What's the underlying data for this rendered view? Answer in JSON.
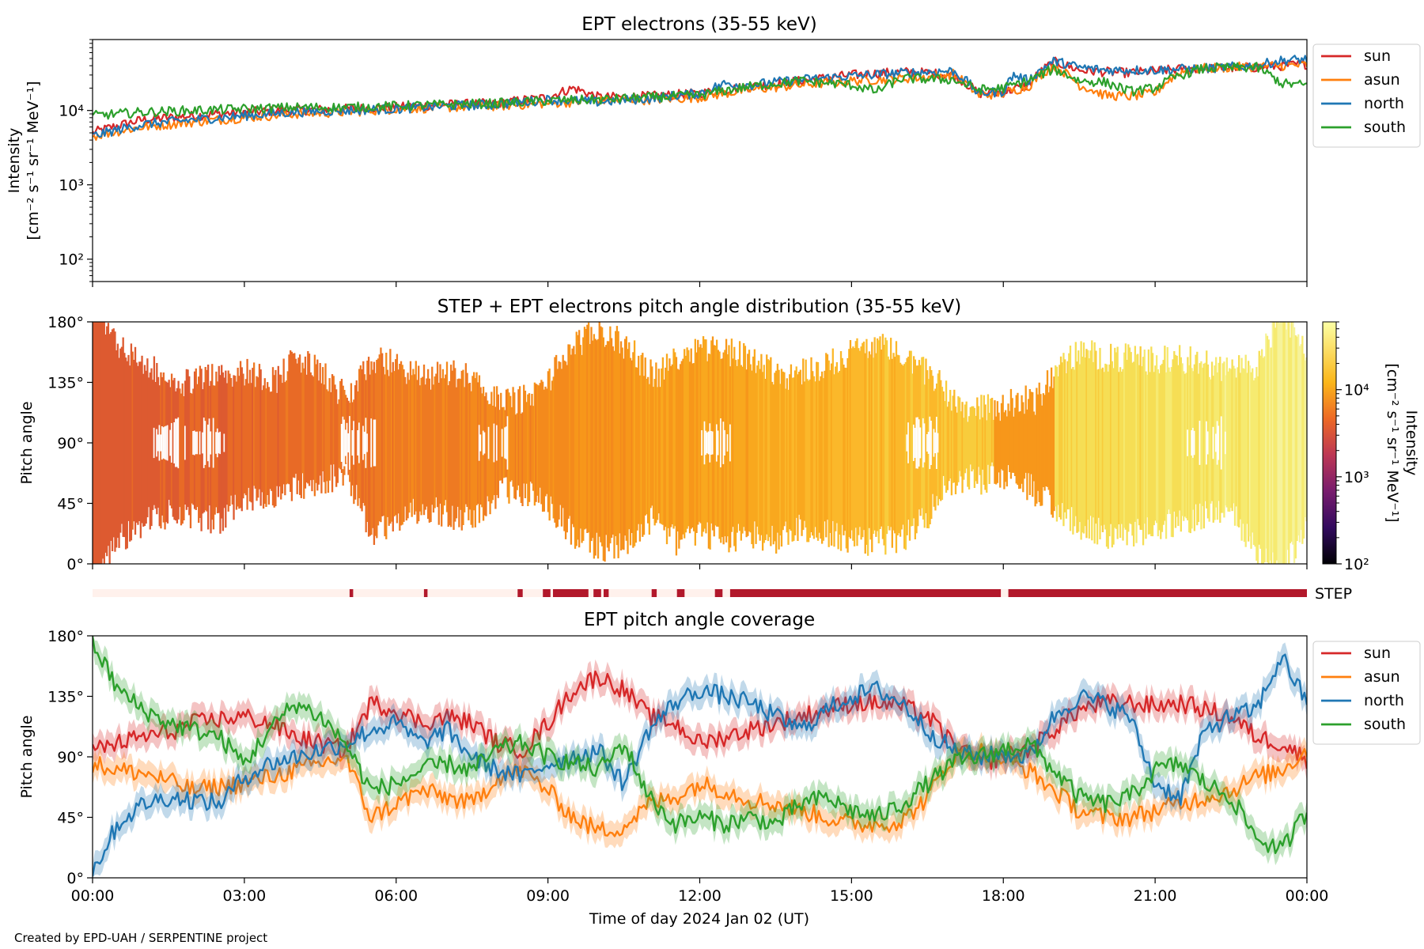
{
  "figure": {
    "credit": "Created by EPD-UAH / SERPENTINE project",
    "colors": {
      "sun": "#d62728",
      "asun": "#ff7f0e",
      "north": "#1f77b4",
      "south": "#2ca02c",
      "step_on": "#b2182b",
      "step_off": "#fff1ec"
    }
  },
  "chart_data": [
    {
      "type": "line",
      "title": "EPT electrons (35-55 keV)",
      "ylabel": "Intensity",
      "yunit": "[cm⁻² s⁻¹ sr⁻¹ MeV⁻¹]",
      "yscale": "log",
      "ylim": [
        50,
        90000
      ],
      "xlim_hours": [
        0,
        24
      ],
      "yticks": [
        {
          "value": 100,
          "label": "10²"
        },
        {
          "value": 1000,
          "label": "10³"
        },
        {
          "value": 10000,
          "label": "10⁴"
        }
      ],
      "legend": "outside-right",
      "series": [
        {
          "name": "sun",
          "color": "#d62728",
          "x": [
            0,
            1,
            2,
            3,
            4,
            5,
            6,
            7,
            8,
            9,
            9.5,
            10,
            11,
            12,
            12.5,
            13,
            14,
            15,
            16,
            16.5,
            17,
            17.5,
            18,
            18.5,
            19,
            19.5,
            20,
            20.5,
            21,
            21.5,
            22,
            23,
            23.5,
            24
          ],
          "values": [
            5000,
            7500,
            8500,
            9500,
            10000,
            10500,
            11000,
            12000,
            12500,
            15000,
            20000,
            15000,
            15500,
            17000,
            19000,
            21000,
            25000,
            30000,
            33000,
            32000,
            30000,
            17000,
            17500,
            22000,
            45000,
            35000,
            33000,
            32000,
            34000,
            36000,
            37000,
            38000,
            40000,
            42000
          ]
        },
        {
          "name": "asun",
          "color": "#ff7f0e",
          "x": [
            0,
            1,
            2,
            3,
            4,
            5,
            6,
            7,
            8,
            9,
            10,
            11,
            12,
            13,
            14,
            15,
            16,
            16.5,
            17,
            17.5,
            18,
            18.5,
            19,
            19.5,
            20,
            20.5,
            21,
            21.5,
            22,
            23,
            23.5,
            24
          ],
          "values": [
            4500,
            6000,
            7000,
            8000,
            9000,
            9500,
            10500,
            11000,
            11500,
            12500,
            13500,
            14000,
            15000,
            19000,
            22000,
            25000,
            27000,
            28000,
            31000,
            16000,
            17000,
            21000,
            40000,
            22000,
            16000,
            15500,
            17000,
            33000,
            37000,
            39000,
            40000,
            41000
          ]
        },
        {
          "name": "north",
          "color": "#1f77b4",
          "x": [
            0,
            1,
            2,
            3,
            4,
            5,
            6,
            7,
            8,
            9,
            10,
            11,
            12,
            12.5,
            13,
            14,
            15,
            16,
            17,
            17.5,
            18,
            18.2,
            18.5,
            19,
            19.5,
            20,
            21,
            22,
            23,
            23.5,
            24
          ],
          "values": [
            4500,
            6500,
            7500,
            8500,
            9500,
            10000,
            10500,
            11500,
            12000,
            14000,
            13000,
            14500,
            17000,
            23000,
            22000,
            26000,
            29000,
            32000,
            34000,
            17000,
            18000,
            30000,
            25000,
            46000,
            38000,
            35000,
            35000,
            37000,
            40000,
            47000,
            49000
          ]
        },
        {
          "name": "south",
          "color": "#2ca02c",
          "x": [
            0,
            1,
            2,
            3,
            4,
            5,
            6,
            7,
            8,
            9,
            10,
            11,
            12,
            13,
            14,
            15,
            15.5,
            16,
            17,
            17.5,
            18,
            18.5,
            19,
            19.5,
            20,
            20.5,
            21,
            21.5,
            22,
            23,
            23.5,
            24
          ],
          "values": [
            8500,
            9500,
            10000,
            10500,
            11000,
            11000,
            11500,
            12000,
            12500,
            13500,
            14000,
            15000,
            16000,
            21000,
            25000,
            22000,
            18000,
            27000,
            26000,
            19000,
            20000,
            25000,
            36000,
            25000,
            24000,
            18000,
            20000,
            30000,
            37000,
            38000,
            23000,
            22000
          ]
        }
      ]
    },
    {
      "type": "heatmap",
      "title": "STEP + EPT electrons pitch angle distribution (35-55 keV)",
      "ylabel": "Pitch angle",
      "ylim": [
        0,
        180
      ],
      "xlim_hours": [
        0,
        24
      ],
      "yticks": [
        {
          "value": 0,
          "label": "0°"
        },
        {
          "value": 45,
          "label": "45°"
        },
        {
          "value": 90,
          "label": "90°"
        },
        {
          "value": 135,
          "label": "135°"
        },
        {
          "value": 180,
          "label": "180°"
        }
      ],
      "colorbar": {
        "label": "Intensity",
        "unit": "[cm⁻² s⁻¹ sr⁻¹ MeV⁻¹]",
        "scale": "log",
        "range": [
          100,
          60000
        ],
        "ticks": [
          {
            "value": 100,
            "label": "10²"
          },
          {
            "value": 1000,
            "label": "10³"
          },
          {
            "value": 10000,
            "label": "10⁴"
          }
        ]
      }
    },
    {
      "type": "bar",
      "label": "STEP",
      "xlim_hours": [
        0,
        24
      ],
      "segments": [
        [
          5.08,
          5.15
        ],
        [
          6.55,
          6.62
        ],
        [
          8.4,
          8.5
        ],
        [
          8.9,
          9.05
        ],
        [
          9.1,
          9.8
        ],
        [
          9.9,
          10.05
        ],
        [
          10.1,
          10.2
        ],
        [
          11.05,
          11.15
        ],
        [
          11.55,
          11.7
        ],
        [
          12.3,
          12.45
        ],
        [
          12.6,
          17.95
        ],
        [
          18.1,
          24.0
        ]
      ]
    },
    {
      "type": "line",
      "title": "EPT pitch angle coverage",
      "ylabel": "Pitch angle",
      "xlabel": "Time of day 2024 Jan 02 (UT)",
      "ylim": [
        0,
        180
      ],
      "xlim_hours": [
        0,
        24
      ],
      "band": "shaded ±8° around each series",
      "yticks": [
        {
          "value": 0,
          "label": "0°"
        },
        {
          "value": 45,
          "label": "45°"
        },
        {
          "value": 90,
          "label": "90°"
        },
        {
          "value": 135,
          "label": "135°"
        },
        {
          "value": 180,
          "label": "180°"
        }
      ],
      "xticks": [
        {
          "value": 0,
          "label": "00:00"
        },
        {
          "value": 3,
          "label": "03:00"
        },
        {
          "value": 6,
          "label": "06:00"
        },
        {
          "value": 9,
          "label": "09:00"
        },
        {
          "value": 12,
          "label": "12:00"
        },
        {
          "value": 15,
          "label": "15:00"
        },
        {
          "value": 18,
          "label": "18:00"
        },
        {
          "value": 21,
          "label": "21:00"
        },
        {
          "value": 24,
          "label": "00:00"
        }
      ],
      "legend": "outside-right",
      "series": [
        {
          "name": "sun",
          "color": "#d62728",
          "x": [
            0,
            0.5,
            1,
            1.5,
            2,
            2.5,
            3,
            3.5,
            4,
            4.5,
            5,
            5.5,
            6,
            6.5,
            7,
            7.5,
            8,
            8.5,
            9,
            9.5,
            10,
            10.5,
            11,
            11.5,
            12,
            12.5,
            13,
            13.5,
            14,
            14.5,
            15,
            15.5,
            16,
            16.5,
            17,
            17.5,
            18,
            18.5,
            19,
            19.5,
            20,
            20.5,
            21,
            21.5,
            22,
            22.5,
            23,
            23.5,
            24
          ],
          "values": [
            95,
            100,
            105,
            108,
            115,
            118,
            120,
            115,
            105,
            100,
            95,
            130,
            125,
            115,
            120,
            115,
            100,
            95,
            115,
            140,
            150,
            140,
            120,
            115,
            100,
            105,
            110,
            115,
            120,
            125,
            130,
            130,
            128,
            120,
            100,
            85,
            90,
            95,
            110,
            125,
            130,
            130,
            128,
            130,
            125,
            120,
            105,
            100,
            88
          ]
        },
        {
          "name": "asun",
          "color": "#ff7f0e",
          "x": [
            0,
            0.5,
            1,
            1.5,
            2,
            2.5,
            3,
            3.5,
            4,
            4.5,
            5,
            5.5,
            6,
            6.5,
            7,
            7.5,
            8,
            8.5,
            9,
            9.5,
            10,
            10.5,
            11,
            11.5,
            12,
            12.5,
            13,
            13.5,
            14,
            14.5,
            15,
            15.5,
            16,
            16.5,
            17,
            17.5,
            18,
            18.5,
            19,
            19.5,
            20,
            20.5,
            21,
            21.5,
            22,
            22.5,
            23,
            23.5,
            24
          ],
          "values": [
            85,
            80,
            78,
            72,
            65,
            68,
            70,
            75,
            80,
            85,
            90,
            45,
            55,
            65,
            60,
            55,
            75,
            80,
            65,
            45,
            35,
            38,
            55,
            60,
            70,
            65,
            58,
            55,
            50,
            45,
            40,
            40,
            42,
            60,
            90,
            95,
            88,
            80,
            65,
            50,
            45,
            45,
            50,
            55,
            60,
            65,
            75,
            80,
            95
          ]
        },
        {
          "name": "north",
          "color": "#1f77b4",
          "x": [
            0,
            0.5,
            1,
            1.5,
            2,
            2.5,
            3,
            3.5,
            4,
            4.5,
            5,
            5.5,
            6,
            6.5,
            7,
            7.5,
            8,
            8.5,
            9,
            9.5,
            10,
            10.5,
            11,
            11.5,
            12,
            12.5,
            13,
            13.5,
            14,
            14.5,
            15,
            15.5,
            16,
            16.5,
            17,
            17.5,
            18,
            18.5,
            19,
            19.5,
            20,
            20.5,
            21,
            21.5,
            22,
            22.5,
            23,
            23.5,
            24
          ],
          "values": [
            5,
            40,
            55,
            60,
            58,
            55,
            75,
            85,
            90,
            95,
            100,
            110,
            115,
            100,
            110,
            90,
            80,
            75,
            85,
            90,
            95,
            70,
            110,
            130,
            140,
            135,
            130,
            120,
            110,
            125,
            135,
            140,
            130,
            110,
            95,
            90,
            92,
            90,
            120,
            135,
            130,
            120,
            70,
            60,
            110,
            120,
            125,
            165,
            130
          ]
        },
        {
          "name": "south",
          "color": "#2ca02c",
          "x": [
            0,
            0.5,
            1,
            1.5,
            2,
            2.5,
            3,
            3.5,
            4,
            4.5,
            5,
            5.5,
            6,
            6.5,
            7,
            7.5,
            8,
            8.5,
            9,
            9.5,
            10,
            10.5,
            11,
            11.5,
            12,
            12.5,
            13,
            13.5,
            14,
            14.5,
            15,
            15.5,
            16,
            16.5,
            17,
            17.5,
            18,
            18.5,
            19,
            19.5,
            20,
            20.5,
            21,
            21.5,
            22,
            22.5,
            23,
            23.5,
            24
          ],
          "values": [
            175,
            140,
            125,
            115,
            110,
            105,
            85,
            110,
            130,
            120,
            100,
            65,
            70,
            80,
            85,
            80,
            95,
            100,
            90,
            85,
            80,
            100,
            60,
            40,
            45,
            40,
            45,
            40,
            55,
            60,
            50,
            45,
            55,
            70,
            85,
            90,
            95,
            100,
            80,
            60,
            55,
            60,
            80,
            85,
            70,
            60,
            30,
            20,
            50
          ]
        }
      ]
    }
  ]
}
